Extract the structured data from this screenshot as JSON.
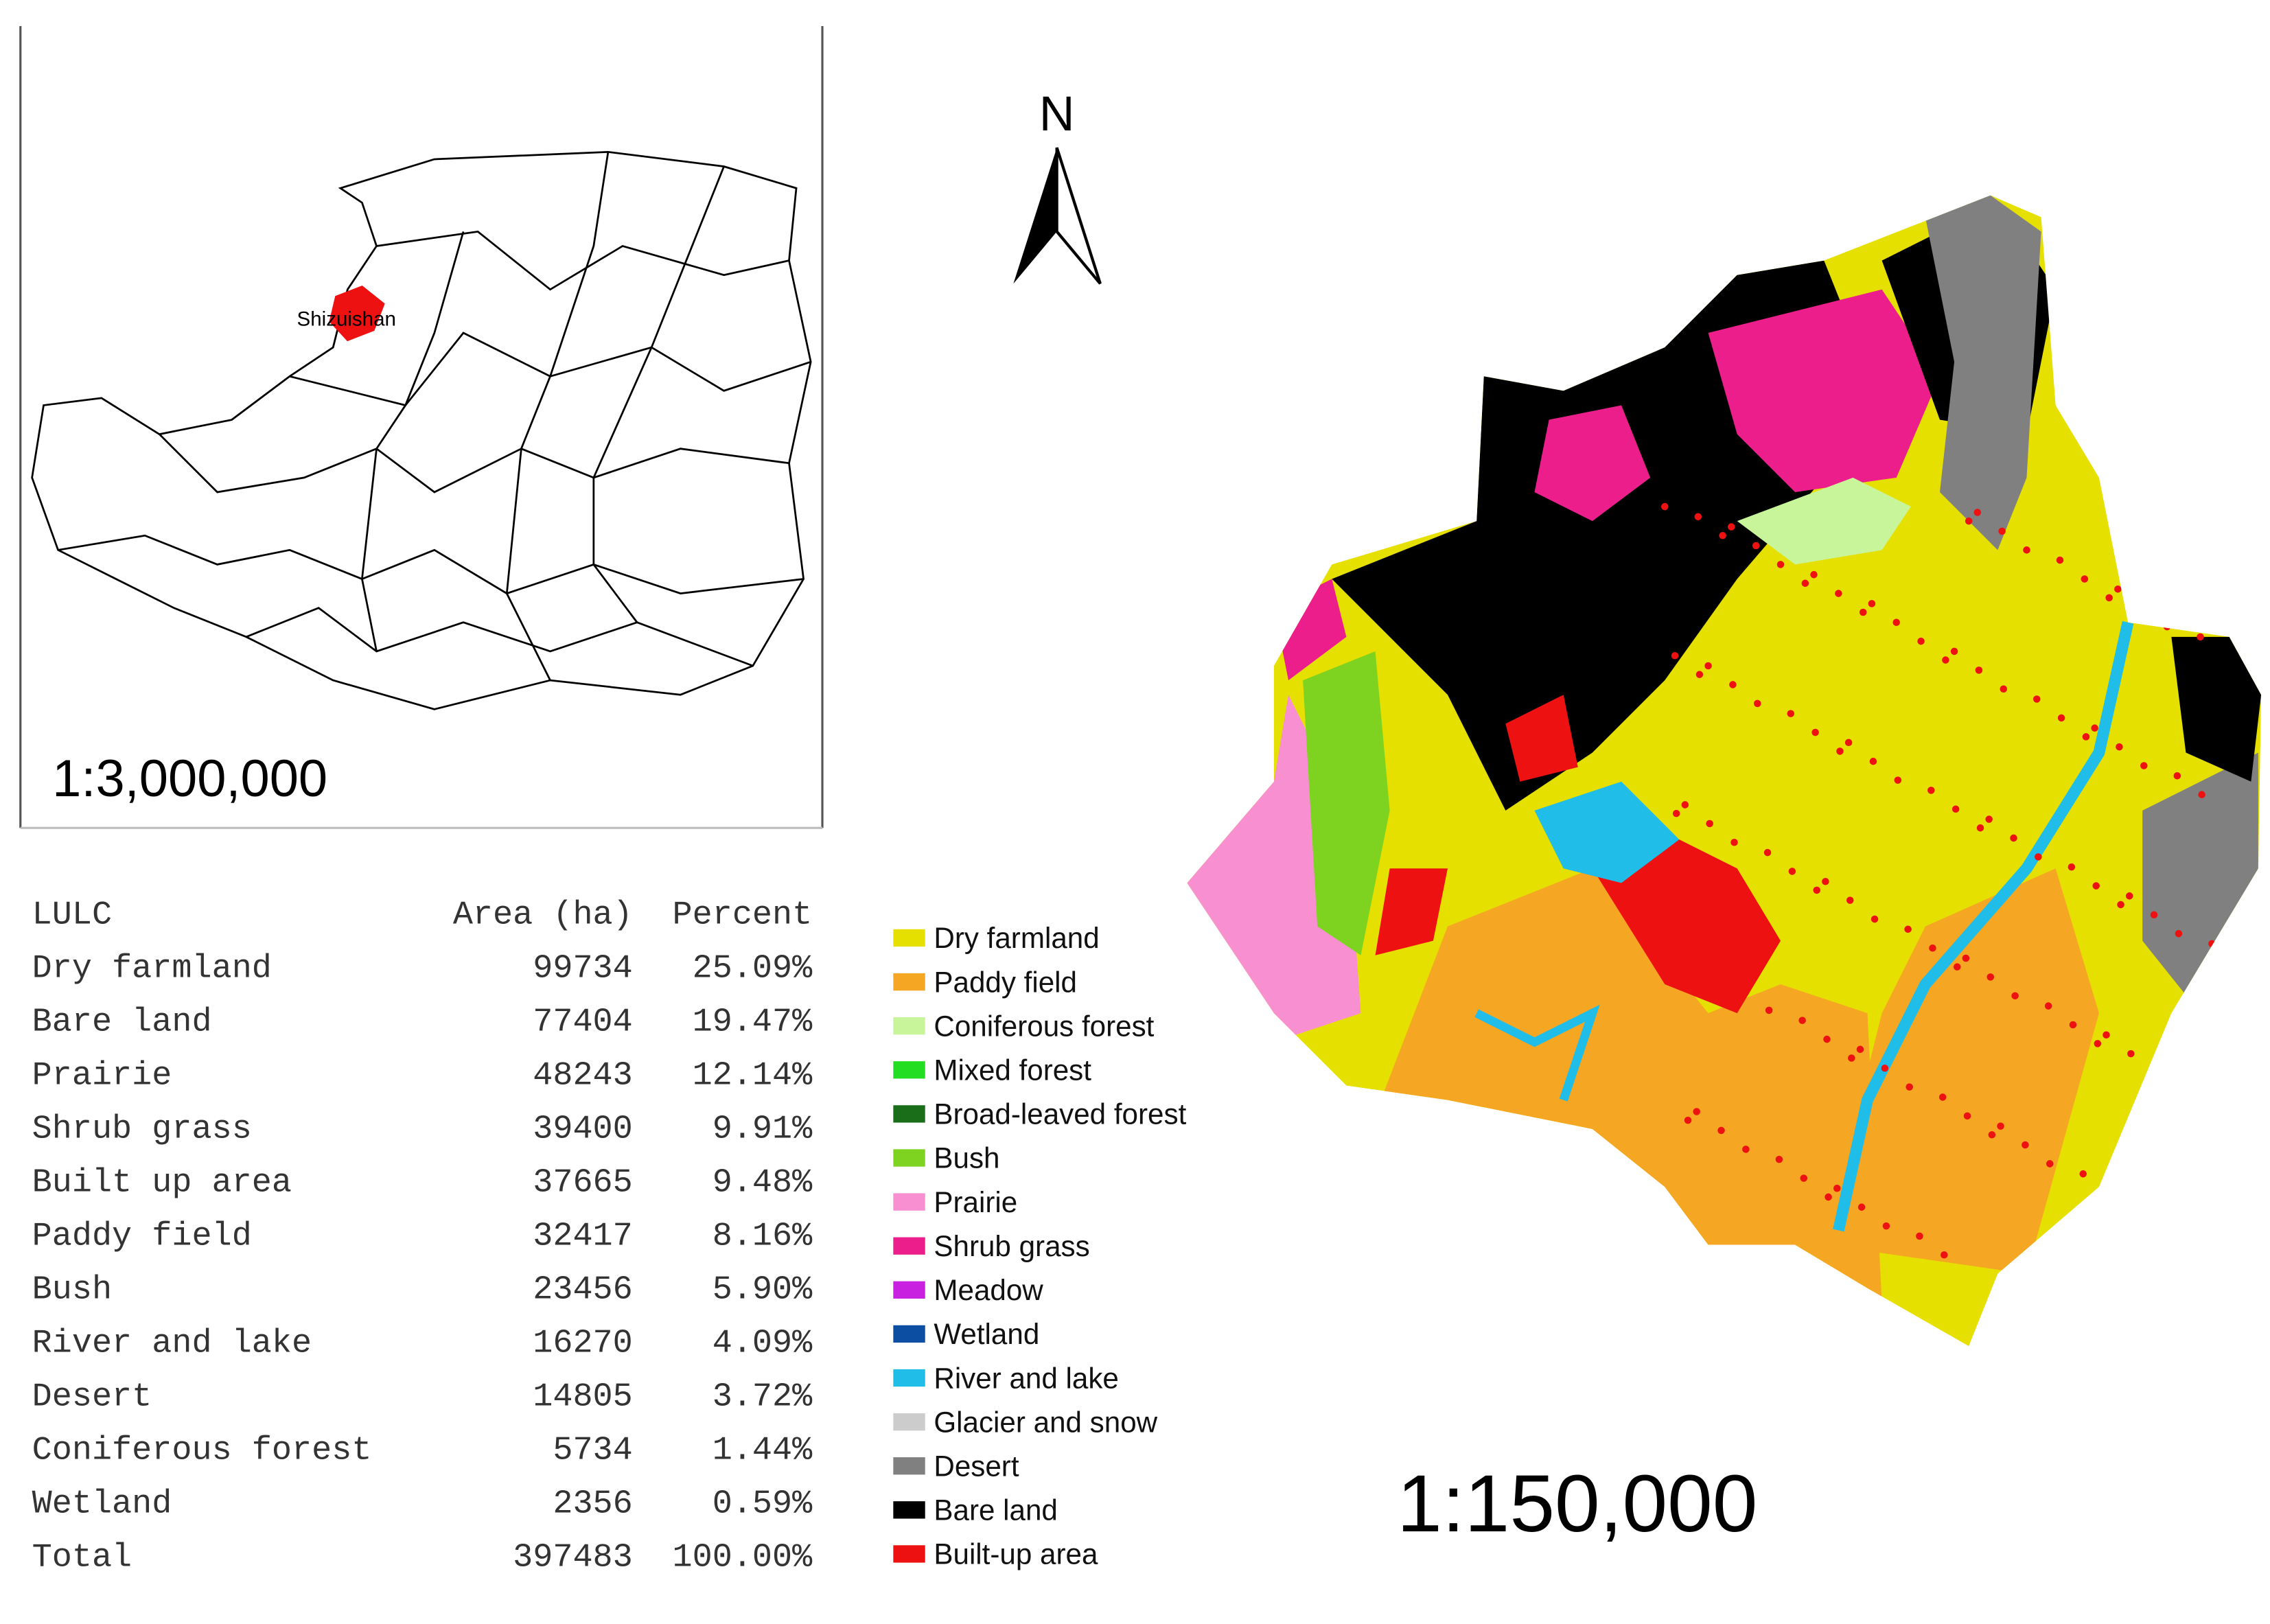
{
  "inset": {
    "label": "Shizuishan",
    "scale": "1:3,000,000"
  },
  "north": "N",
  "table": {
    "header": [
      "LULC",
      "Area (ha)",
      "Percent"
    ],
    "rows": [
      [
        "Dry farmland",
        "99734",
        "25.09%"
      ],
      [
        "Bare land",
        "77404",
        "19.47%"
      ],
      [
        "Prairie",
        "48243",
        "12.14%"
      ],
      [
        "Shrub grass",
        "39400",
        "9.91%"
      ],
      [
        "Built up area",
        "37665",
        "9.48%"
      ],
      [
        "Paddy field",
        "32417",
        "8.16%"
      ],
      [
        "Bush",
        "23456",
        "5.90%"
      ],
      [
        "River and lake",
        "16270",
        "4.09%"
      ],
      [
        "Desert",
        "14805",
        "3.72%"
      ],
      [
        "Coniferous forest",
        "5734",
        "1.44%"
      ],
      [
        "Wetland",
        "2356",
        "0.59%"
      ],
      [
        "Total",
        "397483",
        "100.00%"
      ]
    ]
  },
  "legend": [
    {
      "name": "Dry farmland",
      "color": "#e6e000"
    },
    {
      "name": "Paddy field",
      "color": "#f5a623"
    },
    {
      "name": "Coniferous forest",
      "color": "#c8f59a"
    },
    {
      "name": "Mixed forest",
      "color": "#22dd22"
    },
    {
      "name": "Broad-leaved forest",
      "color": "#1a6e1a"
    },
    {
      "name": "Bush",
      "color": "#7ed321"
    },
    {
      "name": "Prairie",
      "color": "#f78fd0"
    },
    {
      "name": "Shrub grass",
      "color": "#ec1e8c"
    },
    {
      "name": "Meadow",
      "color": "#c822e0"
    },
    {
      "name": "Wetland",
      "color": "#0b4ea2"
    },
    {
      "name": "River and lake",
      "color": "#1fbde8"
    },
    {
      "name": "Glacier and snow",
      "color": "#cccccc"
    },
    {
      "name": "Desert",
      "color": "#808080"
    },
    {
      "name": "Bare land",
      "color": "#000000"
    },
    {
      "name": "Built-up area",
      "color": "#ee1111"
    }
  ],
  "scale": "1:150,000"
}
